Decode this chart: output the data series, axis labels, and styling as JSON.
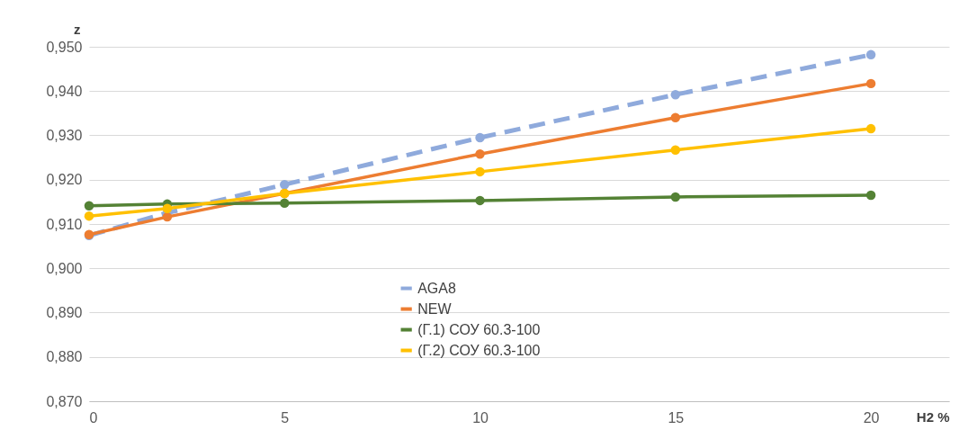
{
  "chart_data": {
    "type": "line",
    "xlabel": "H2 %",
    "ylabel": "z",
    "x": [
      0,
      2,
      5,
      10,
      15,
      20
    ],
    "xlim": [
      0,
      22
    ],
    "xticks": [
      0,
      5,
      10,
      15,
      20
    ],
    "ylim": [
      0.87,
      0.95
    ],
    "yticks": [
      {
        "value": 0.87,
        "label": "0,870"
      },
      {
        "value": 0.88,
        "label": "0,880"
      },
      {
        "value": 0.89,
        "label": "0,890"
      },
      {
        "value": 0.9,
        "label": "0,900"
      },
      {
        "value": 0.91,
        "label": "0,910"
      },
      {
        "value": 0.92,
        "label": "0,920"
      },
      {
        "value": 0.93,
        "label": "0,930"
      },
      {
        "value": 0.94,
        "label": "0,940"
      },
      {
        "value": 0.95,
        "label": "0,950"
      }
    ],
    "grid": "y",
    "legend": "bottom",
    "marker": "circle",
    "series": [
      {
        "name": "AGA8",
        "color": "#8faadc",
        "line_style": "dashed",
        "values": [
          0.9074,
          0.9125,
          0.9189,
          0.9295,
          0.9392,
          0.9482
        ]
      },
      {
        "name": "NEW",
        "color": "#ed7d31",
        "values": [
          0.9076,
          0.9116,
          0.9169,
          0.9258,
          0.934,
          0.9417
        ]
      },
      {
        "name": "(Г.1) СОУ 60.3-100",
        "color": "#548235",
        "values": [
          0.9141,
          0.9145,
          0.9147,
          0.9153,
          0.9161,
          0.9165
        ]
      },
      {
        "name": "(Г.2) СОУ 60.3-100",
        "color": "#ffc000",
        "values": [
          0.9118,
          0.9135,
          0.9169,
          0.9218,
          0.9267,
          0.9315
        ]
      }
    ]
  }
}
